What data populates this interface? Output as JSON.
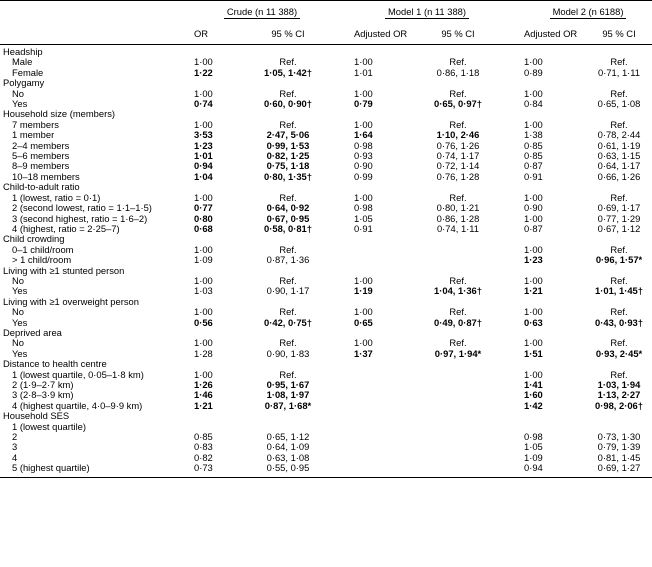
{
  "header": {
    "groups": [
      {
        "label": "Crude (n 11 388)"
      },
      {
        "label": "Model 1 (n 11 388)"
      },
      {
        "label": "Model 2 (n 6188)"
      }
    ],
    "subheaders": [
      "OR",
      "95 % CI",
      "Adjusted OR",
      "95 % CI",
      "Adjusted OR",
      "95 % CI"
    ]
  },
  "rows": [
    {
      "label": "Headship",
      "type": "section"
    },
    {
      "label": "Male",
      "type": "item",
      "cells": [
        {
          "t": "1·00"
        },
        {
          "t": "Ref."
        },
        {
          "t": "1·00"
        },
        {
          "t": "Ref."
        },
        {
          "t": "1·00"
        },
        {
          "t": "Ref."
        }
      ]
    },
    {
      "label": "Female",
      "type": "item",
      "cells": [
        {
          "t": "1·22",
          "b": true
        },
        {
          "t": "1·05, 1·42†",
          "b": true
        },
        {
          "t": "1·01"
        },
        {
          "t": "0·86, 1·18"
        },
        {
          "t": "0·89"
        },
        {
          "t": "0·71, 1·11"
        }
      ]
    },
    {
      "label": "Polygamy",
      "type": "section"
    },
    {
      "label": "No",
      "type": "item",
      "cells": [
        {
          "t": "1·00"
        },
        {
          "t": "Ref."
        },
        {
          "t": "1·00"
        },
        {
          "t": "Ref."
        },
        {
          "t": "1·00"
        },
        {
          "t": "Ref."
        }
      ]
    },
    {
      "label": "Yes",
      "type": "item",
      "cells": [
        {
          "t": "0·74",
          "b": true
        },
        {
          "t": "0·60, 0·90†",
          "b": true
        },
        {
          "t": "0·79",
          "b": true
        },
        {
          "t": "0·65, 0·97†",
          "b": true
        },
        {
          "t": "0·84"
        },
        {
          "t": "0·65, 1·08"
        }
      ]
    },
    {
      "label": "Household size (members)",
      "type": "section"
    },
    {
      "label": "7 members",
      "type": "item",
      "cells": [
        {
          "t": "1·00"
        },
        {
          "t": "Ref."
        },
        {
          "t": "1·00"
        },
        {
          "t": "Ref."
        },
        {
          "t": "1·00"
        },
        {
          "t": "Ref."
        }
      ]
    },
    {
      "label": "1 member",
      "type": "item",
      "cells": [
        {
          "t": "3·53",
          "b": true
        },
        {
          "t": "2·47, 5·06",
          "b": true
        },
        {
          "t": "1·64",
          "b": true
        },
        {
          "t": "1·10, 2·46",
          "b": true
        },
        {
          "t": "1·38"
        },
        {
          "t": "0·78, 2·44"
        }
      ]
    },
    {
      "label": "2–4 members",
      "type": "item",
      "cells": [
        {
          "t": "1·23",
          "b": true
        },
        {
          "t": "0·99, 1·53",
          "b": true
        },
        {
          "t": "0·98"
        },
        {
          "t": "0·76, 1·26"
        },
        {
          "t": "0·85"
        },
        {
          "t": "0·61, 1·19"
        }
      ]
    },
    {
      "label": "5–6 members",
      "type": "item",
      "cells": [
        {
          "t": "1·01",
          "b": true
        },
        {
          "t": "0·82, 1·25",
          "b": true
        },
        {
          "t": "0·93"
        },
        {
          "t": "0·74, 1·17"
        },
        {
          "t": "0·85"
        },
        {
          "t": "0·63, 1·15"
        }
      ]
    },
    {
      "label": "8–9 members",
      "type": "item",
      "cells": [
        {
          "t": "0·94",
          "b": true
        },
        {
          "t": "0·75, 1·18",
          "b": true
        },
        {
          "t": "0·90"
        },
        {
          "t": "0·72, 1·14"
        },
        {
          "t": "0·87"
        },
        {
          "t": "0·64, 1·17"
        }
      ]
    },
    {
      "label": "10–18 members",
      "type": "item",
      "cells": [
        {
          "t": "1·04",
          "b": true
        },
        {
          "t": "0·80, 1·35†",
          "b": true
        },
        {
          "t": "0·99"
        },
        {
          "t": "0·76, 1·28"
        },
        {
          "t": "0·91"
        },
        {
          "t": "0·66, 1·26"
        }
      ]
    },
    {
      "label": "Child-to-adult ratio",
      "type": "section"
    },
    {
      "label": "1 (lowest, ratio = 0·1)",
      "type": "item",
      "cells": [
        {
          "t": "1·00"
        },
        {
          "t": "Ref."
        },
        {
          "t": "1·00"
        },
        {
          "t": "Ref."
        },
        {
          "t": "1·00"
        },
        {
          "t": "Ref."
        }
      ]
    },
    {
      "label": "2 (second lowest, ratio = 1·1–1·5)",
      "type": "item",
      "cells": [
        {
          "t": "0·77",
          "b": true
        },
        {
          "t": "0·64, 0·92",
          "b": true
        },
        {
          "t": "0·98"
        },
        {
          "t": "0·80, 1·21"
        },
        {
          "t": "0·90"
        },
        {
          "t": "0·69, 1·17"
        }
      ]
    },
    {
      "label": "3 (second highest, ratio = 1·6–2)",
      "type": "item",
      "cells": [
        {
          "t": "0·80",
          "b": true
        },
        {
          "t": "0·67, 0·95",
          "b": true
        },
        {
          "t": "1·05"
        },
        {
          "t": "0·86, 1·28"
        },
        {
          "t": "1·00"
        },
        {
          "t": "0·77, 1·29"
        }
      ]
    },
    {
      "label": "4 (highest, ratio = 2·25–7)",
      "type": "item",
      "cells": [
        {
          "t": "0·68",
          "b": true
        },
        {
          "t": "0·58, 0·81†",
          "b": true
        },
        {
          "t": "0·91"
        },
        {
          "t": "0·74, 1·11"
        },
        {
          "t": "0·87"
        },
        {
          "t": "0·67, 1·12"
        }
      ]
    },
    {
      "label": "Child crowding",
      "type": "section"
    },
    {
      "label": "0–1 child/room",
      "type": "item",
      "cells": [
        {
          "t": "1·00"
        },
        {
          "t": "Ref."
        },
        {
          "t": ""
        },
        {
          "t": ""
        },
        {
          "t": "1·00"
        },
        {
          "t": "Ref."
        }
      ]
    },
    {
      "label": "> 1 child/room",
      "type": "item",
      "cells": [
        {
          "t": "1·09"
        },
        {
          "t": "0·87, 1·36"
        },
        {
          "t": ""
        },
        {
          "t": ""
        },
        {
          "t": "1·23",
          "b": true
        },
        {
          "t": "0·96, 1·57*",
          "b": true
        }
      ]
    },
    {
      "label": "Living with ≥1 stunted person",
      "type": "section"
    },
    {
      "label": "No",
      "type": "item",
      "cells": [
        {
          "t": "1·00"
        },
        {
          "t": "Ref."
        },
        {
          "t": "1·00"
        },
        {
          "t": "Ref."
        },
        {
          "t": "1·00"
        },
        {
          "t": "Ref."
        }
      ]
    },
    {
      "label": "Yes",
      "type": "item",
      "cells": [
        {
          "t": "1·03"
        },
        {
          "t": "0·90, 1·17"
        },
        {
          "t": "1·19",
          "b": true
        },
        {
          "t": "1·04, 1·36†",
          "b": true
        },
        {
          "t": "1·21",
          "b": true
        },
        {
          "t": "1·01, 1·45†",
          "b": true
        }
      ]
    },
    {
      "label": "Living with ≥1 overweight person",
      "type": "section"
    },
    {
      "label": "No",
      "type": "item",
      "cells": [
        {
          "t": "1·00"
        },
        {
          "t": "Ref."
        },
        {
          "t": "1·00"
        },
        {
          "t": "Ref."
        },
        {
          "t": "1·00"
        },
        {
          "t": "Ref."
        }
      ]
    },
    {
      "label": "Yes",
      "type": "item",
      "cells": [
        {
          "t": "0·56",
          "b": true
        },
        {
          "t": "0·42, 0·75†",
          "b": true
        },
        {
          "t": "0·65",
          "b": true
        },
        {
          "t": "0·49, 0·87†",
          "b": true
        },
        {
          "t": "0·63",
          "b": true
        },
        {
          "t": "0·43, 0·93†",
          "b": true
        }
      ]
    },
    {
      "label": "Deprived area",
      "type": "section"
    },
    {
      "label": "No",
      "type": "item",
      "cells": [
        {
          "t": "1·00"
        },
        {
          "t": "Ref."
        },
        {
          "t": "1·00"
        },
        {
          "t": "Ref."
        },
        {
          "t": "1·00"
        },
        {
          "t": "Ref."
        }
      ]
    },
    {
      "label": "Yes",
      "type": "item",
      "cells": [
        {
          "t": "1·28"
        },
        {
          "t": "0·90, 1·83"
        },
        {
          "t": "1·37",
          "b": true
        },
        {
          "t": "0·97, 1·94*",
          "b": true
        },
        {
          "t": "1·51",
          "b": true
        },
        {
          "t": "0·93, 2·45*",
          "b": true
        }
      ]
    },
    {
      "label": "Distance to health centre",
      "type": "section"
    },
    {
      "label": "1 (lowest quartile, 0·05–1·8 km)",
      "type": "item",
      "cells": [
        {
          "t": "1·00"
        },
        {
          "t": "Ref."
        },
        {
          "t": ""
        },
        {
          "t": ""
        },
        {
          "t": "1·00"
        },
        {
          "t": "Ref."
        }
      ]
    },
    {
      "label": "2 (1·9–2·7 km)",
      "type": "item",
      "cells": [
        {
          "t": "1·26",
          "b": true
        },
        {
          "t": "0·95, 1·67",
          "b": true
        },
        {
          "t": ""
        },
        {
          "t": ""
        },
        {
          "t": "1·41",
          "b": true
        },
        {
          "t": "1·03, 1·94",
          "b": true
        }
      ]
    },
    {
      "label": "3 (2·8–3·9 km)",
      "type": "item",
      "cells": [
        {
          "t": "1·46",
          "b": true
        },
        {
          "t": "1·08, 1·97",
          "b": true
        },
        {
          "t": ""
        },
        {
          "t": ""
        },
        {
          "t": "1·60",
          "b": true
        },
        {
          "t": "1·13, 2·27",
          "b": true
        }
      ]
    },
    {
      "label": "4 (highest quartile, 4·0–9·9 km)",
      "type": "item",
      "cells": [
        {
          "t": "1·21",
          "b": true
        },
        {
          "t": "0·87, 1·68*",
          "b": true
        },
        {
          "t": ""
        },
        {
          "t": ""
        },
        {
          "t": "1·42",
          "b": true
        },
        {
          "t": "0·98, 2·06†",
          "b": true
        }
      ]
    },
    {
      "label": "Household SES",
      "type": "section"
    },
    {
      "label": "1 (lowest quartile)",
      "type": "item",
      "cells": [
        {
          "t": ""
        },
        {
          "t": ""
        },
        {
          "t": ""
        },
        {
          "t": ""
        },
        {
          "t": ""
        },
        {
          "t": ""
        }
      ]
    },
    {
      "label": "2",
      "type": "item",
      "cells": [
        {
          "t": "0·85"
        },
        {
          "t": "0·65, 1·12"
        },
        {
          "t": ""
        },
        {
          "t": ""
        },
        {
          "t": "0·98"
        },
        {
          "t": "0·73, 1·30"
        }
      ]
    },
    {
      "label": "3",
      "type": "item",
      "cells": [
        {
          "t": "0·83"
        },
        {
          "t": "0·64, 1·09"
        },
        {
          "t": ""
        },
        {
          "t": ""
        },
        {
          "t": "1·05"
        },
        {
          "t": "0·79, 1·39"
        }
      ]
    },
    {
      "label": "4",
      "type": "item",
      "cells": [
        {
          "t": "0·82"
        },
        {
          "t": "0·63, 1·08"
        },
        {
          "t": ""
        },
        {
          "t": ""
        },
        {
          "t": "1·09"
        },
        {
          "t": "0·81, 1·45"
        }
      ]
    },
    {
      "label": "5 (highest quartile)",
      "type": "item",
      "cells": [
        {
          "t": "0·73"
        },
        {
          "t": "0·55, 0·95"
        },
        {
          "t": ""
        },
        {
          "t": ""
        },
        {
          "t": "0·94"
        },
        {
          "t": "0·69, 1·27"
        }
      ]
    }
  ]
}
